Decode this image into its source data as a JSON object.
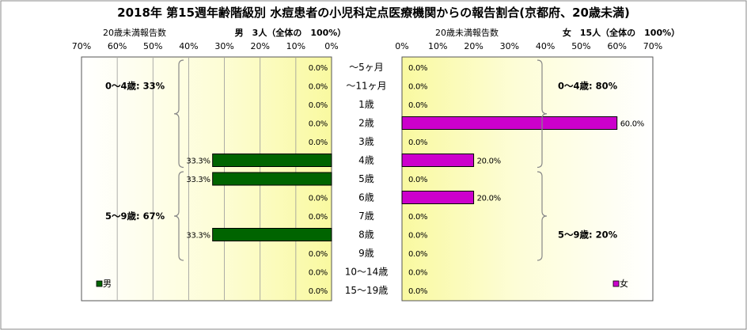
{
  "title": "2018年 第15週年齢階級別 水痘患者の小児科定点医療機関からの報告割合(京都府、20歳未満)",
  "colors": {
    "male": "#006400",
    "female": "#cc00cc",
    "grid": "#999999",
    "plot_border": "#555555"
  },
  "chart_data": [
    {
      "type": "bar",
      "orientation": "horizontal",
      "direction": "right-to-left",
      "panel": "male",
      "header_left": "20歳未満報告数",
      "header_right": "男　3人（全体の　100%）",
      "xlim": [
        0,
        70
      ],
      "x_ticks": [
        "70%",
        "60%",
        "50%",
        "40%",
        "30%",
        "20%",
        "10%",
        "0%"
      ],
      "grid": true,
      "categories": [
        "～5ヶ月",
        "～11ヶ月",
        "1歳",
        "2歳",
        "3歳",
        "4歳",
        "5歳",
        "6歳",
        "7歳",
        "8歳",
        "9歳",
        "10～14歳",
        "15～19歳"
      ],
      "values": [
        0,
        0,
        0,
        0,
        0,
        33.3,
        33.3,
        0,
        0,
        33.3,
        0,
        0,
        0
      ],
      "data_labels": [
        "0.0%",
        "0.0%",
        "0.0%",
        "0.0%",
        "0.0%",
        "33.3%",
        "33.3%",
        "0.0%",
        "0.0%",
        "33.3%",
        "0.0%",
        "0.0%",
        "0.0%"
      ],
      "groups": [
        {
          "label": "0～4歳: 33%",
          "from": 0,
          "to": 5
        },
        {
          "label": "5～9歳: 67%",
          "from": 6,
          "to": 10
        }
      ],
      "legend": "男",
      "legend_position": "bottom-left"
    },
    {
      "type": "bar",
      "orientation": "horizontal",
      "direction": "left-to-right",
      "panel": "female",
      "header_left": "20歳未満報告数",
      "header_right": "女　15人（全体の　100%）",
      "xlim": [
        0,
        70
      ],
      "x_ticks": [
        "0%",
        "10%",
        "20%",
        "30%",
        "40%",
        "50%",
        "60%",
        "70%"
      ],
      "grid": false,
      "categories": [
        "～5ヶ月",
        "～11ヶ月",
        "1歳",
        "2歳",
        "3歳",
        "4歳",
        "5歳",
        "6歳",
        "7歳",
        "8歳",
        "9歳",
        "10～14歳",
        "15～19歳"
      ],
      "values": [
        0,
        0,
        0,
        60,
        0,
        20,
        0,
        20,
        0,
        0,
        0,
        0,
        0
      ],
      "data_labels": [
        "0.0%",
        "0.0%",
        "0.0%",
        "60.0%",
        "0.0%",
        "20.0%",
        "0.0%",
        "20.0%",
        "0.0%",
        "0.0%",
        "0.0%",
        "0.0%",
        "0.0%"
      ],
      "groups": [
        {
          "label": "0～4歳: 80%",
          "from": 0,
          "to": 5
        },
        {
          "label": "5～9歳: 20%",
          "from": 6,
          "to": 10
        }
      ],
      "legend": "女",
      "legend_position": "bottom-right"
    }
  ]
}
